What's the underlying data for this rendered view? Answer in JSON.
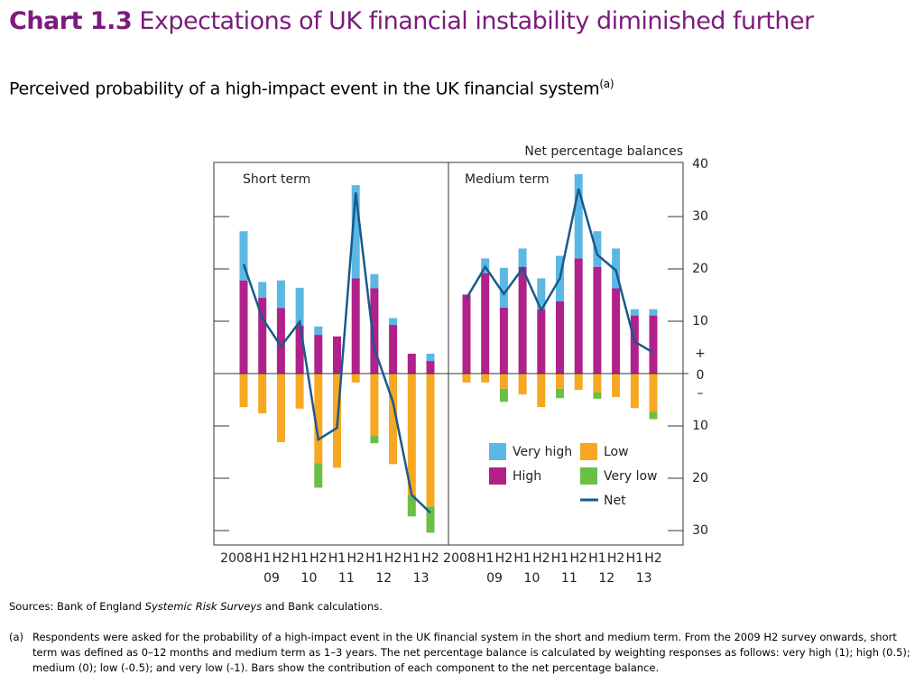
{
  "header": {
    "chart_number": "Chart 1.3",
    "title": "Expectations of UK financial instability diminished further",
    "subtitle": "Perceived probability of a high-impact event in the UK financial system",
    "subtitle_note": "(a)"
  },
  "chart_data": [
    {
      "type": "bar",
      "panel_title": "Short term",
      "categories": [
        "2008",
        "H1",
        "H2",
        "H1",
        "H2",
        "H1",
        "H2",
        "H1",
        "H2",
        "H1",
        "H2"
      ],
      "year_labels": [
        "09",
        "10",
        "11",
        "12",
        "13"
      ],
      "ylim": [
        -30,
        40
      ],
      "yticks": [
        {
          "value": -30,
          "label": "30"
        },
        {
          "value": -20,
          "label": "20"
        },
        {
          "value": -10,
          "label": "10"
        },
        0,
        10,
        20,
        30,
        40
      ],
      "series": [
        {
          "name": "High",
          "color": "#b0218a",
          "values": [
            17.8,
            14.5,
            12.5,
            9.2,
            7.4,
            7.1,
            18.2,
            16.3,
            9.3,
            3.8,
            2.4
          ]
        },
        {
          "name": "Very high",
          "color": "#5bb8e4",
          "values": [
            9.4,
            3.0,
            5.3,
            7.2,
            1.6,
            0,
            17.8,
            2.7,
            1.3,
            0,
            1.4
          ]
        },
        {
          "name": "Low",
          "color": "#f7a823",
          "values": [
            -6.4,
            -7.6,
            -13.1,
            -6.7,
            -17.1,
            -18.0,
            -1.7,
            -11.9,
            -17.3,
            -23.2,
            -25.4
          ]
        },
        {
          "name": "Very low",
          "color": "#6cbf45",
          "values": [
            0,
            0,
            0,
            0,
            -4.7,
            0,
            0,
            -1.4,
            0,
            -4.1,
            -5.0
          ]
        },
        {
          "name": "Net",
          "color": "#1a5a8a",
          "type": "line",
          "values": [
            20.9,
            10.6,
            5.2,
            9.9,
            -12.6,
            -10.4,
            34.6,
            4.8,
            -5.5,
            -23.2,
            -26.6
          ]
        }
      ]
    },
    {
      "type": "bar",
      "panel_title": "Medium term",
      "ylabel": "Net percentage balances",
      "sign_labels": [
        "+",
        "–"
      ],
      "categories": [
        "2008",
        "H1",
        "H2",
        "H1",
        "H2",
        "H1",
        "H2",
        "H1",
        "H2",
        "H1",
        "H2"
      ],
      "year_labels": [
        "09",
        "10",
        "11",
        "12",
        "13"
      ],
      "ylim": [
        -30,
        40
      ],
      "yticks": [
        {
          "value": -30,
          "label": "30"
        },
        {
          "value": -20,
          "label": "20"
        },
        {
          "value": -10,
          "label": "10"
        },
        0,
        10,
        20,
        30,
        40
      ],
      "series": [
        {
          "name": "High",
          "color": "#b0218a",
          "values": [
            15.1,
            19.2,
            12.6,
            20.4,
            12.3,
            13.8,
            22.0,
            20.4,
            16.3,
            11.1,
            11.1
          ]
        },
        {
          "name": "Very high",
          "color": "#5bb8e4",
          "values": [
            0,
            2.8,
            7.6,
            3.5,
            5.9,
            8.7,
            16.1,
            6.8,
            7.6,
            1.2,
            1.2
          ]
        },
        {
          "name": "Low",
          "color": "#f7a823",
          "values": [
            -1.7,
            -1.7,
            -2.9,
            -4.0,
            -6.4,
            -2.9,
            -3.1,
            -3.6,
            -4.5,
            -6.6,
            -7.3
          ]
        },
        {
          "name": "Very low",
          "color": "#6cbf45",
          "values": [
            0,
            0,
            -2.5,
            0,
            0,
            -1.8,
            0,
            -1.2,
            0,
            0,
            -1.4
          ]
        },
        {
          "name": "Net",
          "color": "#1a5a8a",
          "type": "line",
          "values": [
            14.4,
            20.4,
            15.2,
            20.1,
            12.1,
            18.2,
            35.3,
            22.7,
            19.7,
            6.1,
            4.0
          ]
        }
      ]
    }
  ],
  "sources": {
    "before": "Sources: Bank of England ",
    "italic": "Systemic Risk Surveys",
    "after": " and Bank calculations."
  },
  "note": {
    "label": "(a)",
    "text": "Respondents were asked for the probability of a high-impact event in the UK financial system in the short and medium term.  From the 2009 H2 survey onwards, short term was defined as 0–12 months and medium term as 1–3 years.  The net percentage balance is calculated by weighting responses as follows: very high (1); high (0.5); medium (0); low (-0.5); and very low (-1).  Bars show the contribution of each component to the net percentage balance."
  }
}
